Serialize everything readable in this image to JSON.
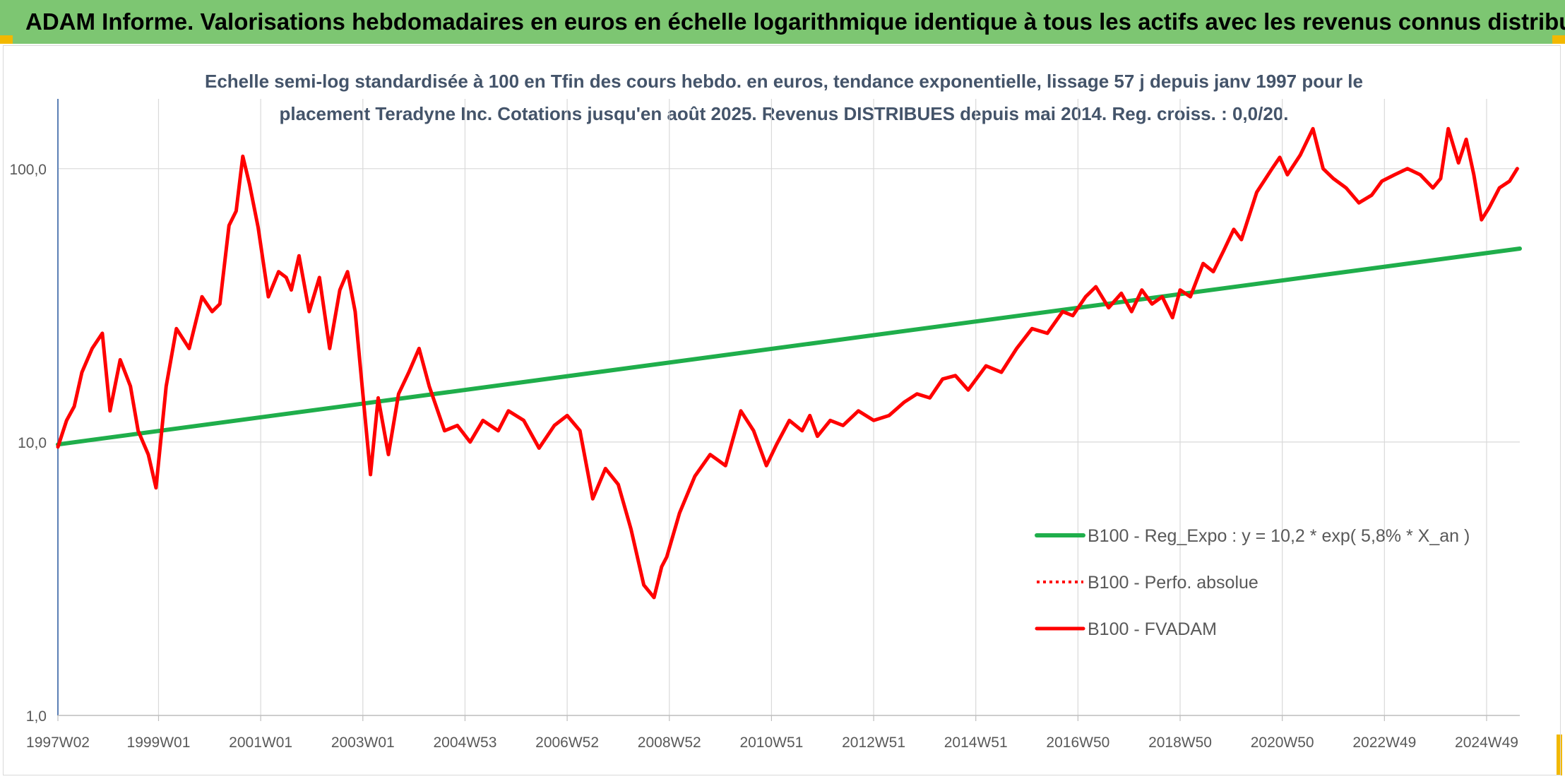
{
  "banner": {
    "title": "ADAM Informe. Valorisations hebdomadaires en euros en échelle logarithmique identique à tous les actifs avec les revenus connus distribués"
  },
  "colors": {
    "banner_bg": "#7dc672",
    "corner_mark": "#f2b800",
    "regression": "#1fae4b",
    "fvadam": "#ff0000",
    "perfo": "#ff0000",
    "grid": "#d9d9d9",
    "axis_text": "#595959",
    "subtitle": "#44546a"
  },
  "chart_data": {
    "type": "line",
    "title": "Echelle semi-log standardisée à 100 en Tfin des cours hebdo. en euros, tendance exponentielle, lissage 57 j depuis janv 1997 pour le placement Teradyne Inc. Cotations jusqu'en août 2025. Revenus DISTRIBUES depuis mai 2014. Reg. croiss. : 0,0/20.",
    "y_scale": "log",
    "ylim": [
      1,
      180
    ],
    "y_ticks": [
      {
        "value": 1,
        "label": "1,0"
      },
      {
        "value": 10,
        "label": "10,0"
      },
      {
        "value": 100,
        "label": "100,0"
      }
    ],
    "xlim": [
      1997.03,
      2025.65
    ],
    "x_ticks": [
      {
        "x": 1997.03,
        "label": "1997W02"
      },
      {
        "x": 1999.0,
        "label": "1999W01"
      },
      {
        "x": 2001.0,
        "label": "2001W01"
      },
      {
        "x": 2003.0,
        "label": "2003W01"
      },
      {
        "x": 2005.0,
        "label": "2004W53"
      },
      {
        "x": 2007.0,
        "label": "2006W52"
      },
      {
        "x": 2009.0,
        "label": "2008W52"
      },
      {
        "x": 2011.0,
        "label": "2010W51"
      },
      {
        "x": 2013.0,
        "label": "2012W51"
      },
      {
        "x": 2015.0,
        "label": "2014W51"
      },
      {
        "x": 2017.0,
        "label": "2016W50"
      },
      {
        "x": 2019.0,
        "label": "2018W50"
      },
      {
        "x": 2021.0,
        "label": "2020W50"
      },
      {
        "x": 2023.0,
        "label": "2022W49"
      },
      {
        "x": 2025.0,
        "label": "2024W49"
      }
    ],
    "grid": "vertical and horizontal",
    "legend_position": "bottom-right",
    "series": [
      {
        "name": "B100 - Reg_Expo : y = 10,2 * exp( 5,8% *  X_an )",
        "style": "solid-green",
        "x": [
          1997.03,
          2025.65
        ],
        "y": [
          9.8,
          51.0
        ]
      },
      {
        "name": "B100 - Perfo. absolue",
        "style": "dotted-red",
        "x": [],
        "y": []
      },
      {
        "name": "B100 - FVADAM",
        "style": "solid-red",
        "x": [
          1997.03,
          1997.2,
          1997.35,
          1997.5,
          1997.7,
          1997.9,
          1998.05,
          1998.25,
          1998.45,
          1998.6,
          1998.8,
          1998.95,
          1999.15,
          1999.35,
          1999.6,
          1999.85,
          2000.05,
          2000.2,
          2000.38,
          2000.52,
          2000.65,
          2000.78,
          2000.95,
          2001.15,
          2001.35,
          2001.5,
          2001.6,
          2001.75,
          2001.95,
          2002.15,
          2002.35,
          2002.55,
          2002.7,
          2002.85,
          2003.0,
          2003.15,
          2003.3,
          2003.5,
          2003.7,
          2003.9,
          2004.1,
          2004.3,
          2004.6,
          2004.85,
          2005.1,
          2005.35,
          2005.65,
          2005.85,
          2006.15,
          2006.45,
          2006.75,
          2007.0,
          2007.25,
          2007.5,
          2007.75,
          2008.0,
          2008.25,
          2008.5,
          2008.7,
          2008.85,
          2008.95,
          2009.2,
          2009.5,
          2009.8,
          2010.1,
          2010.4,
          2010.65,
          2010.9,
          2011.1,
          2011.35,
          2011.6,
          2011.75,
          2011.9,
          2012.15,
          2012.4,
          2012.7,
          2013.0,
          2013.3,
          2013.6,
          2013.85,
          2014.1,
          2014.35,
          2014.6,
          2014.85,
          2015.2,
          2015.5,
          2015.8,
          2016.1,
          2016.4,
          2016.7,
          2016.9,
          2017.15,
          2017.35,
          2017.6,
          2017.85,
          2018.05,
          2018.25,
          2018.45,
          2018.65,
          2018.85,
          2019.0,
          2019.2,
          2019.45,
          2019.65,
          2019.85,
          2020.05,
          2020.2,
          2020.5,
          2020.8,
          2020.95,
          2021.1,
          2021.35,
          2021.6,
          2021.8,
          2022.0,
          2022.25,
          2022.5,
          2022.75,
          2022.95,
          2023.2,
          2023.45,
          2023.7,
          2023.95,
          2024.1,
          2024.25,
          2024.45,
          2024.6,
          2024.75,
          2024.9,
          2025.05,
          2025.25,
          2025.45,
          2025.6
        ],
        "y": [
          9.6,
          12,
          13.5,
          18,
          22,
          25,
          13,
          20,
          16,
          11,
          9,
          6.8,
          16,
          26,
          22,
          34,
          30,
          32,
          62,
          70,
          111,
          88,
          61,
          34,
          42,
          40,
          36,
          48,
          30,
          40,
          22,
          36,
          42,
          30,
          15,
          7.6,
          14.5,
          9,
          15,
          18,
          22,
          16,
          11,
          11.5,
          10,
          12,
          11,
          13,
          12,
          9.5,
          11.5,
          12.5,
          11,
          6.2,
          8,
          7,
          4.8,
          3,
          2.7,
          3.5,
          3.8,
          5.5,
          7.5,
          9,
          8.2,
          13,
          11,
          8.2,
          9.8,
          12,
          11,
          12.5,
          10.5,
          12,
          11.5,
          13,
          12,
          12.5,
          14,
          15,
          14.5,
          17,
          17.5,
          15.5,
          19,
          18,
          22,
          26,
          25,
          30,
          29,
          34,
          37,
          31,
          35,
          30,
          36,
          32,
          34,
          28.5,
          36,
          34,
          45,
          42,
          50,
          60,
          55,
          82,
          100,
          110,
          95,
          112,
          140,
          100,
          92,
          85,
          75,
          80,
          90,
          95,
          100,
          95,
          85,
          92,
          140,
          105,
          128,
          95,
          65,
          72,
          85,
          90,
          100
        ]
      }
    ]
  }
}
